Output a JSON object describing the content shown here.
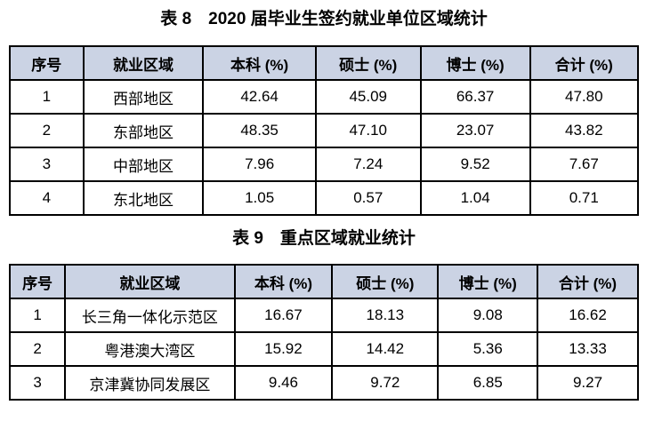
{
  "style": {
    "page_bg": "#ffffff",
    "header_bg": "#cbd3e4",
    "border_color": "#000000",
    "text_color": "#000000"
  },
  "tables": [
    {
      "id": "table-8",
      "title": "表 8　2020 届毕业生签约就业单位区域统计",
      "columns": [
        "序号",
        "就业区域",
        "本科 (%)",
        "硕士 (%)",
        "博士 (%)",
        "合计 (%)"
      ],
      "col_widths": [
        "11.7%",
        "19.1%",
        "17.9%",
        "16.7%",
        "17.4%",
        "17.2%"
      ],
      "rows": [
        [
          "1",
          "西部地区",
          "42.64",
          "45.09",
          "66.37",
          "47.80"
        ],
        [
          "2",
          "东部地区",
          "48.35",
          "47.10",
          "23.07",
          "43.82"
        ],
        [
          "3",
          "中部地区",
          "7.96",
          "7.24",
          "9.52",
          "7.67"
        ],
        [
          "4",
          "东北地区",
          "1.05",
          "0.57",
          "1.04",
          "0.71"
        ]
      ]
    },
    {
      "id": "table-9",
      "title": "表 9　重点区域就业统计",
      "columns": [
        "序号",
        "就业区域",
        "本科 (%)",
        "硕士 (%)",
        "博士 (%)",
        "合计 (%)"
      ],
      "col_widths": [
        "8.8%",
        "27.0%",
        "15.5%",
        "16.9%",
        "15.8%",
        "16.0%"
      ],
      "rows": [
        [
          "1",
          "长三角一体化示范区",
          "16.67",
          "18.13",
          "9.08",
          "16.62"
        ],
        [
          "2",
          "粤港澳大湾区",
          "15.92",
          "14.42",
          "5.36",
          "13.33"
        ],
        [
          "3",
          "京津冀协同发展区",
          "9.46",
          "9.72",
          "6.85",
          "9.27"
        ]
      ]
    }
  ]
}
